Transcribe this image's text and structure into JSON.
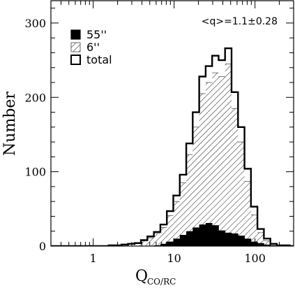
{
  "chart_data": {
    "type": "histogram",
    "xscale": "log",
    "xlim": [
      0.3,
      300
    ],
    "ylim": [
      0,
      330
    ],
    "xlabel_main": "Q",
    "xlabel_sub": "CO/RC",
    "ylabel": "Number",
    "x_ticks": [
      {
        "value": 1,
        "label": "1"
      },
      {
        "value": 10,
        "label": "10"
      },
      {
        "value": 100,
        "label": "100"
      }
    ],
    "y_ticks": [
      {
        "value": 0,
        "label": "0"
      },
      {
        "value": 100,
        "label": "100"
      },
      {
        "value": 200,
        "label": "200"
      },
      {
        "value": 300,
        "label": "300"
      }
    ],
    "annotation": "<q>=1.1±0.28",
    "bin_log10_start": -0.53,
    "bin_log10_width": 0.08,
    "series": [
      {
        "name": "total",
        "style": "outline",
        "values": [
          0,
          0,
          0,
          0,
          0,
          0,
          0,
          0,
          0,
          1,
          1,
          2,
          3,
          4,
          8,
          13,
          19,
          29,
          47,
          68,
          96,
          138,
          180,
          228,
          242,
          256,
          250,
          266,
          207,
          160,
          104,
          53,
          23,
          10,
          3,
          1,
          1,
          0,
          0,
          0,
          0,
          0,
          0
        ]
      },
      {
        "name": "6''",
        "style": "hatched",
        "values": [
          0,
          0,
          0,
          0,
          0,
          0,
          0,
          0,
          0,
          1,
          1,
          2,
          3,
          4,
          7,
          11,
          17,
          25,
          41,
          60,
          85,
          123,
          160,
          205,
          220,
          233,
          228,
          245,
          185,
          140,
          87,
          42,
          18,
          7,
          2,
          1,
          1,
          0,
          0,
          0,
          0,
          0,
          0
        ]
      },
      {
        "name": "55''",
        "style": "solid",
        "values": [
          0,
          0,
          0,
          0,
          0,
          0,
          0,
          0,
          0,
          0,
          0,
          0,
          0,
          0,
          0,
          0,
          1,
          3,
          6,
          10,
          15,
          20,
          25,
          29,
          31,
          28,
          21,
          18,
          17,
          14,
          10,
          6,
          4,
          2,
          1,
          0,
          0,
          0,
          0,
          0,
          0,
          0,
          0
        ]
      }
    ],
    "legend": [
      {
        "label": "55''",
        "style": "solid"
      },
      {
        "label": "6''",
        "style": "hatched"
      },
      {
        "label": "total",
        "style": "outline"
      }
    ],
    "legend_position": "top-left",
    "annotation_position": "top-right"
  }
}
